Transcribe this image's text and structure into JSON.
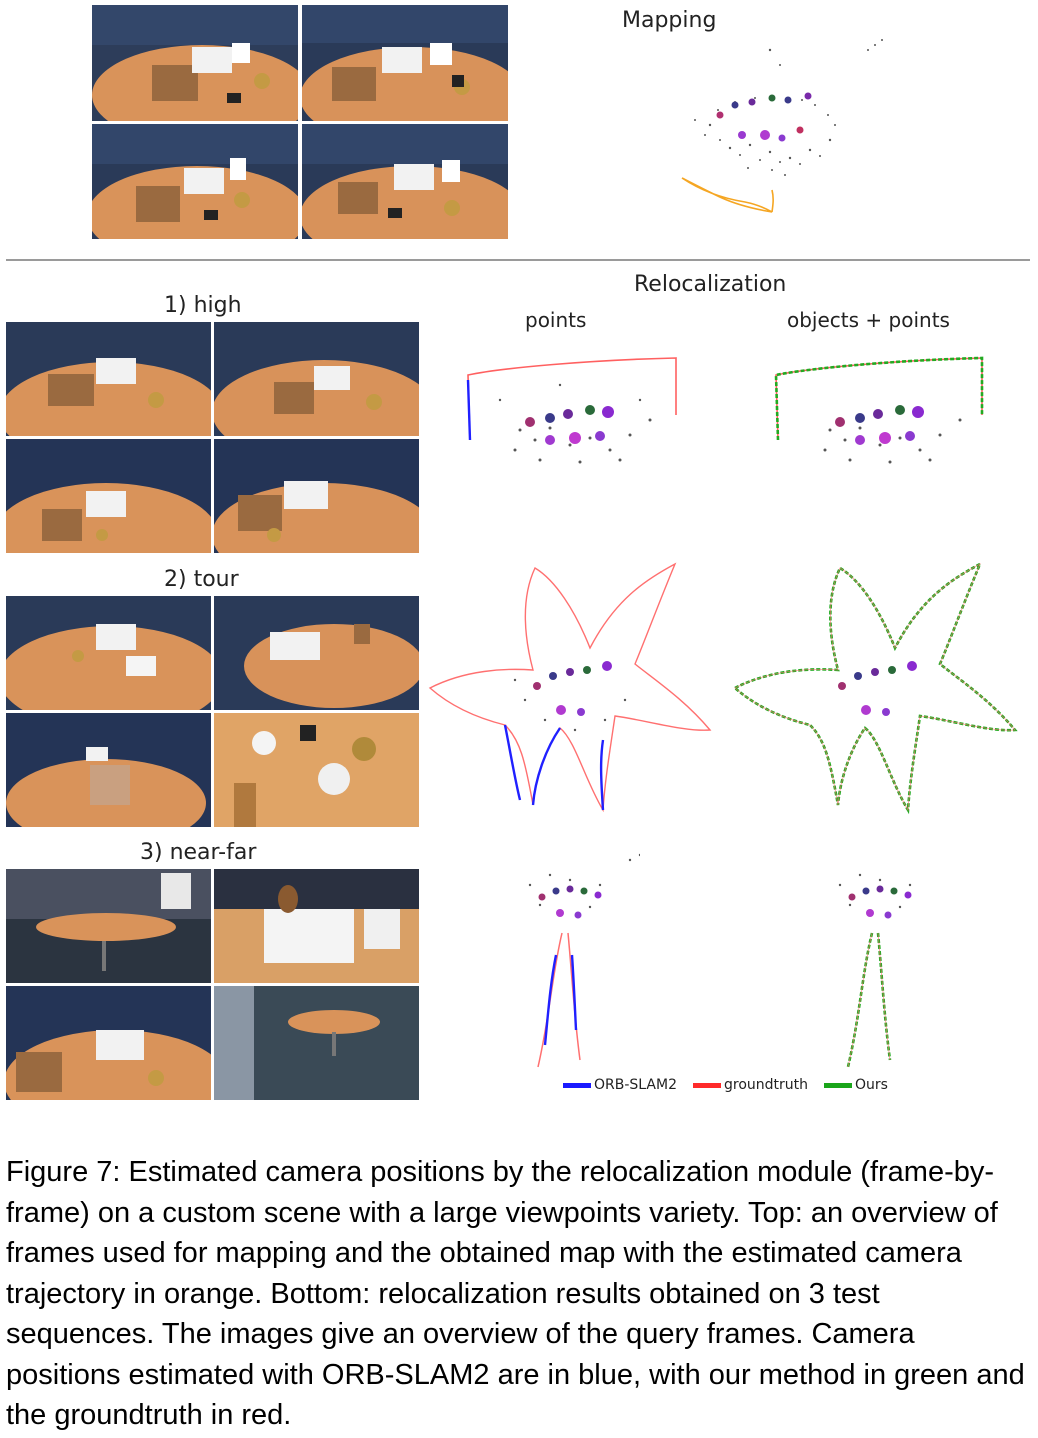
{
  "figure": {
    "mapping_title": "Mapping",
    "relocalization_title": "Relocalization",
    "col_points": "points",
    "col_objects_points": "objects + points",
    "sequences": [
      {
        "label": "1) high"
      },
      {
        "label": "2) tour"
      },
      {
        "label": "3) near-far"
      }
    ],
    "legend": [
      {
        "label": "ORB-SLAM2",
        "color": "#1a1aff"
      },
      {
        "label": "groundtruth",
        "color": "#ff2a2a"
      },
      {
        "label": "Ours",
        "color": "#1aa51a"
      }
    ],
    "mapping_trajectory_color": "#f5a623"
  },
  "caption": {
    "text": "Figure 7: Estimated camera positions by the relocalization module (frame-by-frame) on a custom scene with a large viewpoints variety. Top: an overview of frames used for mapping and the obtained map with the estimated camera trajectory in orange. Bottom: relocalization results obtained on 3 test sequences. The images give an overview of the query frames. Camera positions estimated with ORB-SLAM2 are in blue, with our method in green and the groundtruth in red."
  }
}
